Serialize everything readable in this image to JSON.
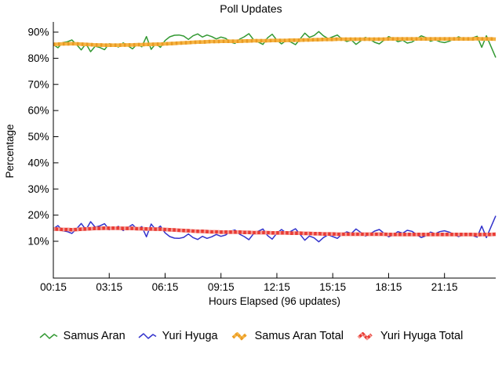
{
  "title": "Poll Updates",
  "y_axis": {
    "label": "Percentage",
    "tick_suffix": "%",
    "ticks": [
      90,
      80,
      70,
      60,
      50,
      40,
      30,
      20,
      10
    ]
  },
  "x_axis": {
    "label": "Hours Elapsed (96 updates)",
    "tick_labels": [
      "00:15",
      "03:15",
      "06:15",
      "09:15",
      "12:15",
      "15:15",
      "18:15",
      "21:15"
    ],
    "tick_update_indices": [
      0,
      12,
      24,
      36,
      48,
      60,
      72,
      84
    ]
  },
  "legend": {
    "position": "bottom",
    "items": [
      {
        "label": "Samus Aran",
        "color": "#339933",
        "thick": false
      },
      {
        "label": "Yuri Hyuga",
        "color": "#3333CC",
        "thick": false
      },
      {
        "label": "Samus Aran Total",
        "color": "#F6B545",
        "dash_color": "#E99A23",
        "thick": true
      },
      {
        "label": "Yuri Hyuga Total",
        "color": "#E93A33",
        "dash_color": "#F59B94",
        "thick": true
      }
    ]
  },
  "chart_data": {
    "type": "line",
    "title": "Poll Updates",
    "xlabel": "Hours Elapsed (96 updates)",
    "ylabel": "Percentage",
    "grid": false,
    "background": "#FFFFFF",
    "legend_position": "bottom",
    "n_points": 96,
    "x_start_time": "00:15",
    "x_interval_minutes": 15,
    "y_ticks": [
      10,
      20,
      30,
      40,
      50,
      60,
      70,
      80,
      90
    ],
    "ylim": [
      -4.5,
      93.5
    ],
    "x_ticks": {
      "labels": [
        "00:15",
        "03:15",
        "06:15",
        "09:15",
        "12:15",
        "15:15",
        "18:15",
        "21:15"
      ],
      "update_indices": [
        0,
        12,
        24,
        36,
        48,
        60,
        72,
        84
      ]
    },
    "series": [
      {
        "name": "Samus Aran",
        "color": "#339933",
        "thick": false,
        "values": [
          85.2,
          84.0,
          86.0,
          86.3,
          87.0,
          85.2,
          83.2,
          85.6,
          82.5,
          84.6,
          84.1,
          83.3,
          85.6,
          85.0,
          84.3,
          85.9,
          84.8,
          83.6,
          85.4,
          84.4,
          88.3,
          83.4,
          85.6,
          84.2,
          86.8,
          88.2,
          88.8,
          88.9,
          88.5,
          87.2,
          88.6,
          89.3,
          88.1,
          88.9,
          88.3,
          87.4,
          88.1,
          87.6,
          86.2,
          85.7,
          87.3,
          88.2,
          89.4,
          87.1,
          86.2,
          85.3,
          87.8,
          89.2,
          86.9,
          85.5,
          86.8,
          86.2,
          85.2,
          87.4,
          89.6,
          88.0,
          88.7,
          90.2,
          88.6,
          87.5,
          88.2,
          88.9,
          87.3,
          86.4,
          87.0,
          85.3,
          86.6,
          88.0,
          87.2,
          86.1,
          85.5,
          86.9,
          88.3,
          87.5,
          86.3,
          86.9,
          85.8,
          86.2,
          87.4,
          88.6,
          87.9,
          86.5,
          87.1,
          86.3,
          86.0,
          86.5,
          87.3,
          88.2,
          87.5,
          86.9,
          87.8,
          88.4,
          84.2,
          88.6,
          84.4,
          80.3
        ]
      },
      {
        "name": "Yuri Hyuga",
        "color": "#3333CC",
        "thick": false,
        "values": [
          14.8,
          16.0,
          14.0,
          13.7,
          13.0,
          14.8,
          16.8,
          14.4,
          17.5,
          15.4,
          15.9,
          16.7,
          14.4,
          15.0,
          15.7,
          14.1,
          15.2,
          16.4,
          14.6,
          15.6,
          11.7,
          16.6,
          14.4,
          15.8,
          13.2,
          11.8,
          11.2,
          11.1,
          11.5,
          12.8,
          11.4,
          10.7,
          11.9,
          11.1,
          11.7,
          12.6,
          11.9,
          12.4,
          13.8,
          14.3,
          12.7,
          11.8,
          10.6,
          12.9,
          13.8,
          14.7,
          12.2,
          10.8,
          13.1,
          14.5,
          13.2,
          13.8,
          14.8,
          12.6,
          10.4,
          12.0,
          11.3,
          9.8,
          11.4,
          12.5,
          11.8,
          11.1,
          12.7,
          13.6,
          13.0,
          14.7,
          13.4,
          12.0,
          12.8,
          13.9,
          14.5,
          13.1,
          11.7,
          12.5,
          13.7,
          13.1,
          14.2,
          13.8,
          12.6,
          11.4,
          12.1,
          13.5,
          12.9,
          13.7,
          14.0,
          13.5,
          12.7,
          11.8,
          12.5,
          13.1,
          12.2,
          11.6,
          15.8,
          11.4,
          15.6,
          19.7
        ]
      },
      {
        "name": "Samus Aran Total",
        "color": "#F6B545",
        "dash_color": "#E99A23",
        "thick": true,
        "values": [
          85.3,
          85.4,
          85.5,
          85.5,
          85.6,
          85.5,
          85.4,
          85.3,
          85.2,
          85.1,
          85.1,
          85.0,
          85.0,
          85.0,
          85.0,
          85.1,
          85.1,
          85.1,
          85.2,
          85.2,
          85.3,
          85.3,
          85.4,
          85.4,
          85.5,
          85.6,
          85.7,
          85.8,
          85.9,
          86.0,
          86.1,
          86.2,
          86.2,
          86.3,
          86.4,
          86.4,
          86.5,
          86.5,
          86.5,
          86.5,
          86.5,
          86.6,
          86.6,
          86.7,
          86.7,
          86.7,
          86.7,
          86.8,
          86.8,
          86.8,
          86.8,
          86.9,
          86.9,
          86.9,
          87.0,
          87.0,
          87.1,
          87.1,
          87.2,
          87.2,
          87.2,
          87.3,
          87.3,
          87.3,
          87.3,
          87.3,
          87.3,
          87.3,
          87.3,
          87.3,
          87.3,
          87.3,
          87.4,
          87.4,
          87.4,
          87.4,
          87.4,
          87.4,
          87.4,
          87.4,
          87.4,
          87.4,
          87.4,
          87.4,
          87.4,
          87.4,
          87.4,
          87.4,
          87.4,
          87.4,
          87.4,
          87.5,
          87.4,
          87.4,
          87.4,
          87.3
        ]
      },
      {
        "name": "Yuri Hyuga Total",
        "color": "#E93A33",
        "dash_color": "#F59B94",
        "thick": true,
        "values": [
          14.7,
          14.6,
          14.5,
          14.5,
          14.4,
          14.5,
          14.6,
          14.7,
          14.8,
          14.9,
          14.9,
          15.0,
          15.0,
          15.0,
          15.0,
          14.9,
          14.9,
          14.9,
          14.8,
          14.8,
          14.7,
          14.7,
          14.6,
          14.6,
          14.5,
          14.4,
          14.3,
          14.2,
          14.1,
          14.0,
          13.9,
          13.8,
          13.8,
          13.7,
          13.6,
          13.6,
          13.5,
          13.5,
          13.5,
          13.5,
          13.5,
          13.4,
          13.4,
          13.3,
          13.3,
          13.3,
          13.3,
          13.2,
          13.2,
          13.2,
          13.2,
          13.1,
          13.1,
          13.1,
          13.0,
          13.0,
          12.9,
          12.9,
          12.8,
          12.8,
          12.8,
          12.7,
          12.7,
          12.7,
          12.7,
          12.7,
          12.7,
          12.7,
          12.7,
          12.7,
          12.7,
          12.7,
          12.6,
          12.6,
          12.6,
          12.6,
          12.6,
          12.6,
          12.6,
          12.6,
          12.6,
          12.6,
          12.6,
          12.6,
          12.6,
          12.6,
          12.6,
          12.6,
          12.6,
          12.6,
          12.6,
          12.5,
          12.6,
          12.6,
          12.6,
          12.7
        ]
      }
    ]
  }
}
